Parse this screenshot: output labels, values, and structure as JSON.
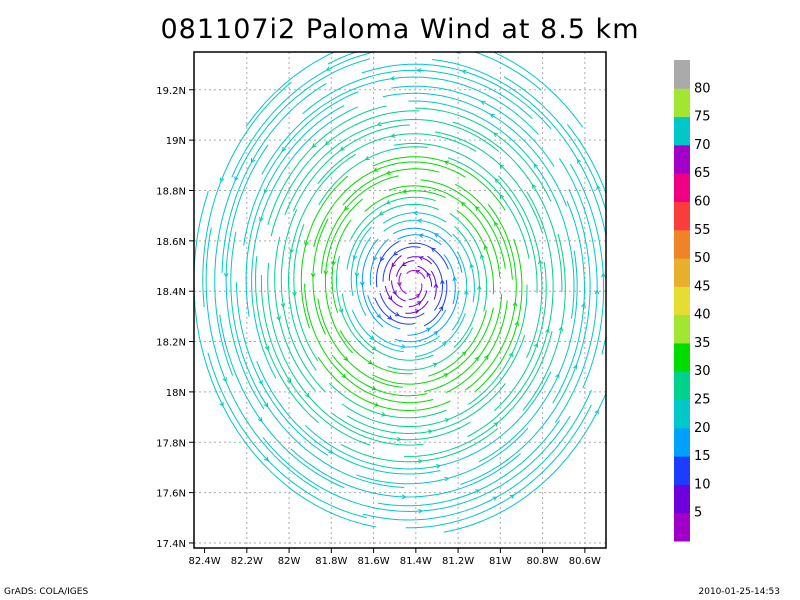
{
  "chart_data": {
    "type": "streamline",
    "title": "081107i2 Paloma Wind at 8.5 km",
    "xlabel": "",
    "ylabel": "",
    "x_ticks": [
      "82.4W",
      "82.2W",
      "82W",
      "81.8W",
      "81.6W",
      "81.4W",
      "81.2W",
      "81W",
      "80.8W",
      "80.6W"
    ],
    "y_ticks": [
      "17.4N",
      "17.6N",
      "17.8N",
      "18N",
      "18.2N",
      "18.4N",
      "18.6N",
      "18.8N",
      "19N",
      "19.2N"
    ],
    "xlim": [
      -82.45,
      -80.5
    ],
    "ylim": [
      17.38,
      19.35
    ],
    "grid": true,
    "center": {
      "lon": -81.42,
      "lat": 18.43
    },
    "max_wind_approx": 35,
    "colorbar": {
      "labels": [
        "5",
        "10",
        "15",
        "20",
        "25",
        "30",
        "35",
        "40",
        "45",
        "50",
        "55",
        "60",
        "65",
        "70",
        "75",
        "80"
      ],
      "colors": [
        "#a000c8",
        "#6e00dc",
        "#1e3cff",
        "#00a0ff",
        "#00c8c8",
        "#00d28c",
        "#00dc00",
        "#a0e632",
        "#e6dc32",
        "#e6af2d",
        "#f08228",
        "#fa3c3c",
        "#f00082",
        "#a000c8",
        "#00c8c8",
        "#a0e632",
        "#aaaaaa"
      ]
    }
  },
  "footer": {
    "left": "GrADS: COLA/IGES",
    "right": "2010-01-25-14:53"
  }
}
